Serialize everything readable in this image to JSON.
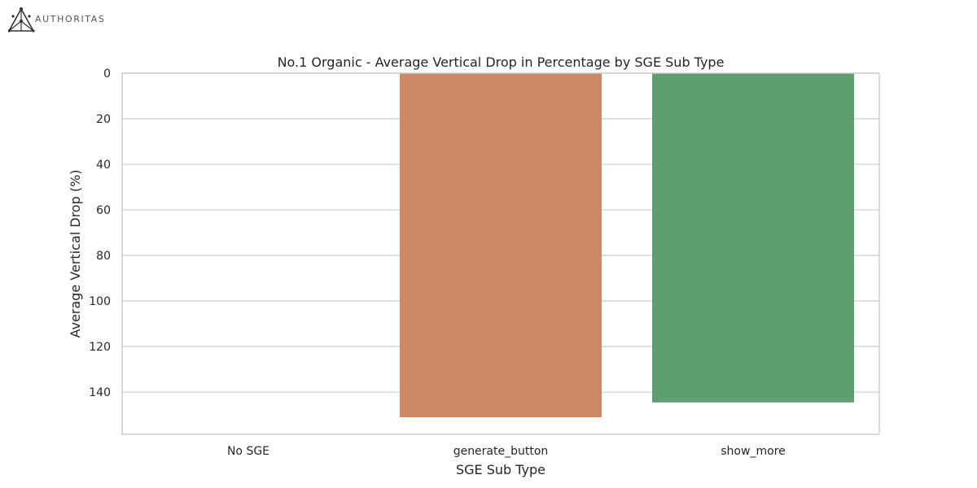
{
  "branding": {
    "logo_text": "AUTHORITAS",
    "logo_icon": "authoritas-triangle-icon"
  },
  "chart_data": {
    "type": "bar",
    "title": "No.1 Organic - Average Vertical Drop in Percentage by SGE Sub Type",
    "xlabel": "SGE Sub Type",
    "ylabel": "Average Vertical Drop (%)",
    "categories": [
      "No SGE",
      "generate_button",
      "show_more"
    ],
    "values": [
      0,
      151,
      144.5
    ],
    "colors": [
      "#4c72b0",
      "#cc8963",
      "#5f9e6e"
    ],
    "ylim": [
      0,
      158.5
    ],
    "y_inverted": true,
    "yticks": [
      0,
      20,
      40,
      60,
      80,
      100,
      120,
      140
    ],
    "grid": "horizontal",
    "legend": "none"
  }
}
